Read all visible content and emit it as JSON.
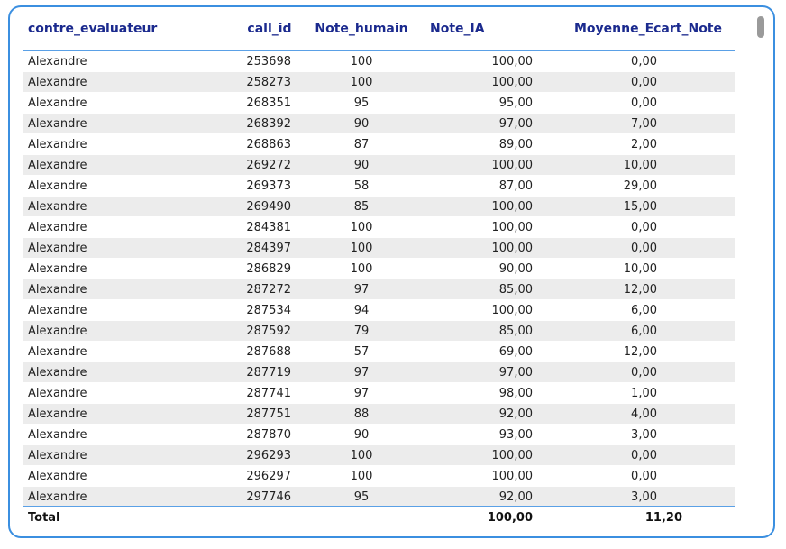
{
  "table": {
    "columns": [
      "contre_evaluateur",
      "call_id",
      "Note_humain",
      "Note_IA",
      "Moyenne_Ecart_Note"
    ],
    "rows": [
      [
        "Alexandre",
        "253698",
        "100",
        "100,00",
        "0,00"
      ],
      [
        "Alexandre",
        "258273",
        "100",
        "100,00",
        "0,00"
      ],
      [
        "Alexandre",
        "268351",
        "95",
        "95,00",
        "0,00"
      ],
      [
        "Alexandre",
        "268392",
        "90",
        "97,00",
        "7,00"
      ],
      [
        "Alexandre",
        "268863",
        "87",
        "89,00",
        "2,00"
      ],
      [
        "Alexandre",
        "269272",
        "90",
        "100,00",
        "10,00"
      ],
      [
        "Alexandre",
        "269373",
        "58",
        "87,00",
        "29,00"
      ],
      [
        "Alexandre",
        "269490",
        "85",
        "100,00",
        "15,00"
      ],
      [
        "Alexandre",
        "284381",
        "100",
        "100,00",
        "0,00"
      ],
      [
        "Alexandre",
        "284397",
        "100",
        "100,00",
        "0,00"
      ],
      [
        "Alexandre",
        "286829",
        "100",
        "90,00",
        "10,00"
      ],
      [
        "Alexandre",
        "287272",
        "97",
        "85,00",
        "12,00"
      ],
      [
        "Alexandre",
        "287534",
        "94",
        "100,00",
        "6,00"
      ],
      [
        "Alexandre",
        "287592",
        "79",
        "85,00",
        "6,00"
      ],
      [
        "Alexandre",
        "287688",
        "57",
        "69,00",
        "12,00"
      ],
      [
        "Alexandre",
        "287719",
        "97",
        "97,00",
        "0,00"
      ],
      [
        "Alexandre",
        "287741",
        "97",
        "98,00",
        "1,00"
      ],
      [
        "Alexandre",
        "287751",
        "88",
        "92,00",
        "4,00"
      ],
      [
        "Alexandre",
        "287870",
        "90",
        "93,00",
        "3,00"
      ],
      [
        "Alexandre",
        "296293",
        "100",
        "100,00",
        "0,00"
      ],
      [
        "Alexandre",
        "296297",
        "100",
        "100,00",
        "0,00"
      ],
      [
        "Alexandre",
        "297746",
        "95",
        "92,00",
        "3,00"
      ]
    ],
    "total": {
      "label": "Total",
      "note_ia": "100,00",
      "moyenne_ecart": "11,20"
    }
  },
  "colors": {
    "frame_border": "#3b8fe0",
    "header_text": "#1b2a8e",
    "header_rule": "#5aa0e6",
    "stripe": "#ececec"
  },
  "icons": {
    "scrollbar": "vertical-scrollbar-thumb"
  }
}
